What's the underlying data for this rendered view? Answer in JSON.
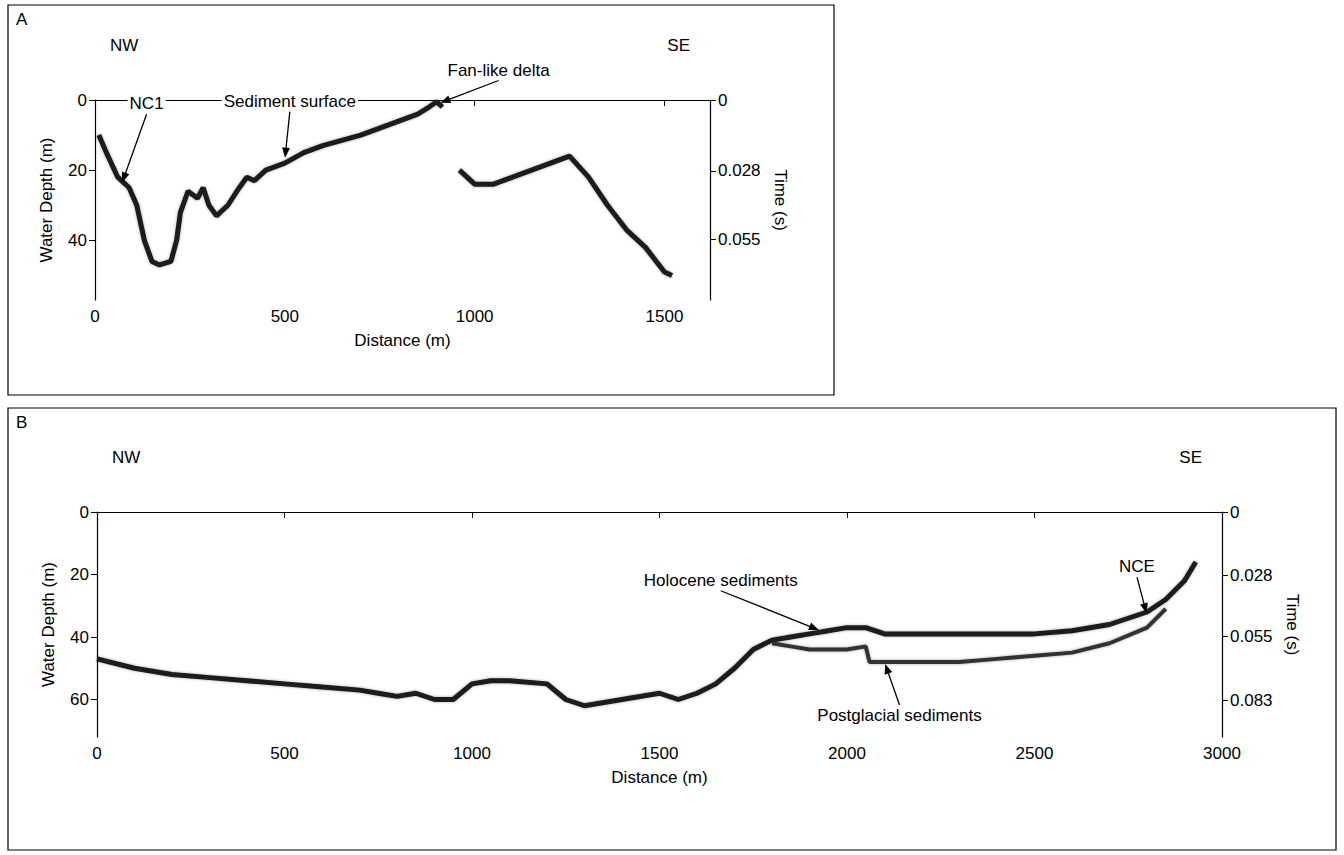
{
  "chart_data": [
    {
      "type": "line",
      "title": "A",
      "direction": {
        "left": "NW",
        "right": "SE"
      },
      "x_label": "Distance (m)",
      "y_label": "Water Depth (m)",
      "y2_label": "Time (s)",
      "xlim": [
        0,
        1620
      ],
      "xticks": [
        0,
        500,
        1000,
        1500
      ],
      "ylim": [
        0,
        57
      ],
      "yticks": [
        0,
        20,
        40
      ],
      "y2lim": [
        0,
        0.079
      ],
      "y2ticks": [
        0,
        0.028,
        0.055
      ],
      "grid": false,
      "marker": "none",
      "series": [
        {
          "color": "#1a1a1a",
          "x": [
            10,
            30,
            60,
            90,
            110,
            130,
            150,
            170,
            200,
            215,
            225,
            245,
            270,
            285,
            300,
            320,
            350,
            380,
            400,
            420,
            450,
            500,
            550,
            600,
            700,
            750,
            800,
            850,
            880,
            900,
            915,
            930,
            960,
            1000,
            1050,
            1100,
            1200,
            1250,
            1300,
            1350,
            1400,
            1450,
            1500,
            1520
          ],
          "values": [
            10,
            15,
            22,
            25,
            30,
            40,
            46,
            47,
            46,
            40,
            32,
            26,
            28,
            25,
            30,
            33,
            30,
            25,
            22,
            23,
            20,
            18,
            15,
            13,
            10,
            8,
            6,
            4,
            2,
            0.5,
            2,
            null,
            20,
            24,
            24,
            22,
            18,
            16,
            22,
            30,
            37,
            42,
            49,
            50
          ]
        }
      ],
      "annotations": [
        {
          "text": "NC1",
          "x": 70,
          "y": 24
        },
        {
          "text": "Sediment surface",
          "x": 500,
          "y": 17
        },
        {
          "text": "Fan-like delta",
          "x": 905,
          "y": 1
        }
      ]
    },
    {
      "type": "line",
      "title": "B",
      "direction": {
        "left": "NW",
        "right": "SE"
      },
      "x_label": "Distance (m)",
      "y_label": "Water Depth (m)",
      "y2_label": "Time (s)",
      "xlim": [
        0,
        3000
      ],
      "xticks": [
        0,
        500,
        1000,
        1500,
        2000,
        2500,
        3000
      ],
      "ylim": [
        0,
        72
      ],
      "yticks": [
        0,
        20,
        40,
        60
      ],
      "y2lim": [
        0,
        0.0993
      ],
      "y2ticks": [
        0,
        0.028,
        0.055,
        0.083
      ],
      "grid": false,
      "marker": "none",
      "series": [
        {
          "color": "#1a1a1a",
          "x": [
            0,
            100,
            200,
            300,
            400,
            500,
            600,
            700,
            750,
            800,
            850,
            900,
            950,
            1000,
            1050,
            1100,
            1200,
            1250,
            1300,
            1400,
            1500,
            1550,
            1600,
            1650,
            1700,
            1750,
            1800,
            1850,
            1900,
            1950,
            2000,
            2050,
            2100,
            2200,
            2300,
            2400,
            2500,
            2600,
            2700,
            2800,
            2850,
            2900,
            2930
          ],
          "values": [
            47,
            50,
            52,
            53,
            54,
            55,
            56,
            57,
            58,
            59,
            58,
            60,
            60,
            55,
            54,
            54,
            55,
            60,
            62,
            60,
            58,
            60,
            58,
            55,
            50,
            44,
            41,
            40,
            39,
            38,
            37,
            37,
            39,
            39,
            39,
            39,
            39,
            38,
            36,
            32,
            28,
            22,
            16
          ]
        },
        {
          "color": "#333333",
          "x": [
            1800,
            1850,
            1900,
            2000,
            2050,
            2060,
            2100,
            2200,
            2300,
            2400,
            2500,
            2600,
            2700,
            2800,
            2850
          ],
          "values": [
            42,
            43,
            44,
            44,
            43,
            48,
            48,
            48,
            48,
            47,
            46,
            45,
            42,
            37,
            31
          ]
        }
      ],
      "annotations": [
        {
          "text": "Holocene sediments",
          "x": 1930,
          "y": 38
        },
        {
          "text": "Postglacial sediments",
          "x": 2100,
          "y": 48
        },
        {
          "text": "NCE",
          "x": 2800,
          "y": 33
        }
      ]
    }
  ]
}
